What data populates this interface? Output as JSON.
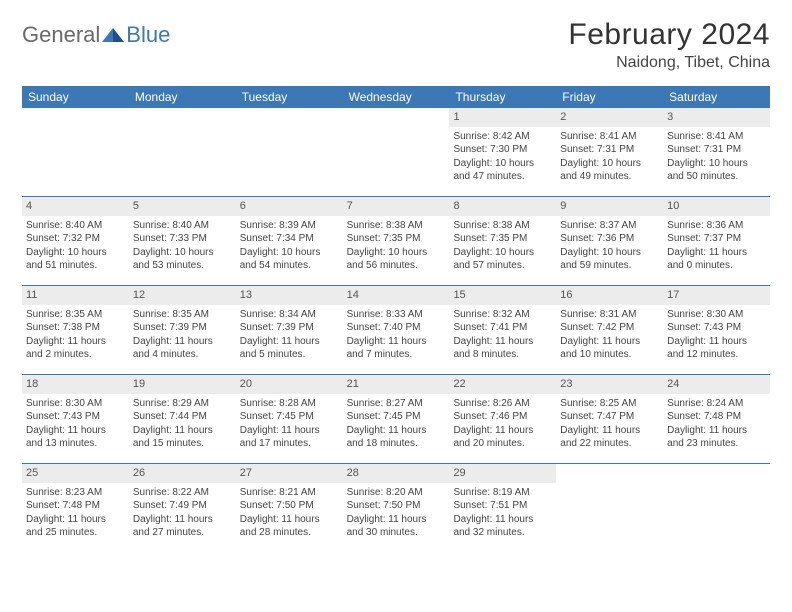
{
  "logo": {
    "word1": "General",
    "word2": "Blue"
  },
  "title": "February 2024",
  "location": "Naidong, Tibet, China",
  "colors": {
    "header_bg": "#3b78b5",
    "header_text": "#ffffff",
    "daynum_bg": "#ececec",
    "border": "#3b78b5",
    "body_text": "#444444"
  },
  "daysOfWeek": [
    "Sunday",
    "Monday",
    "Tuesday",
    "Wednesday",
    "Thursday",
    "Friday",
    "Saturday"
  ],
  "weeks": [
    [
      null,
      null,
      null,
      null,
      {
        "n": "1",
        "sr": "Sunrise: 8:42 AM",
        "ss": "Sunset: 7:30 PM",
        "d1": "Daylight: 10 hours",
        "d2": "and 47 minutes."
      },
      {
        "n": "2",
        "sr": "Sunrise: 8:41 AM",
        "ss": "Sunset: 7:31 PM",
        "d1": "Daylight: 10 hours",
        "d2": "and 49 minutes."
      },
      {
        "n": "3",
        "sr": "Sunrise: 8:41 AM",
        "ss": "Sunset: 7:31 PM",
        "d1": "Daylight: 10 hours",
        "d2": "and 50 minutes."
      }
    ],
    [
      {
        "n": "4",
        "sr": "Sunrise: 8:40 AM",
        "ss": "Sunset: 7:32 PM",
        "d1": "Daylight: 10 hours",
        "d2": "and 51 minutes."
      },
      {
        "n": "5",
        "sr": "Sunrise: 8:40 AM",
        "ss": "Sunset: 7:33 PM",
        "d1": "Daylight: 10 hours",
        "d2": "and 53 minutes."
      },
      {
        "n": "6",
        "sr": "Sunrise: 8:39 AM",
        "ss": "Sunset: 7:34 PM",
        "d1": "Daylight: 10 hours",
        "d2": "and 54 minutes."
      },
      {
        "n": "7",
        "sr": "Sunrise: 8:38 AM",
        "ss": "Sunset: 7:35 PM",
        "d1": "Daylight: 10 hours",
        "d2": "and 56 minutes."
      },
      {
        "n": "8",
        "sr": "Sunrise: 8:38 AM",
        "ss": "Sunset: 7:35 PM",
        "d1": "Daylight: 10 hours",
        "d2": "and 57 minutes."
      },
      {
        "n": "9",
        "sr": "Sunrise: 8:37 AM",
        "ss": "Sunset: 7:36 PM",
        "d1": "Daylight: 10 hours",
        "d2": "and 59 minutes."
      },
      {
        "n": "10",
        "sr": "Sunrise: 8:36 AM",
        "ss": "Sunset: 7:37 PM",
        "d1": "Daylight: 11 hours",
        "d2": "and 0 minutes."
      }
    ],
    [
      {
        "n": "11",
        "sr": "Sunrise: 8:35 AM",
        "ss": "Sunset: 7:38 PM",
        "d1": "Daylight: 11 hours",
        "d2": "and 2 minutes."
      },
      {
        "n": "12",
        "sr": "Sunrise: 8:35 AM",
        "ss": "Sunset: 7:39 PM",
        "d1": "Daylight: 11 hours",
        "d2": "and 4 minutes."
      },
      {
        "n": "13",
        "sr": "Sunrise: 8:34 AM",
        "ss": "Sunset: 7:39 PM",
        "d1": "Daylight: 11 hours",
        "d2": "and 5 minutes."
      },
      {
        "n": "14",
        "sr": "Sunrise: 8:33 AM",
        "ss": "Sunset: 7:40 PM",
        "d1": "Daylight: 11 hours",
        "d2": "and 7 minutes."
      },
      {
        "n": "15",
        "sr": "Sunrise: 8:32 AM",
        "ss": "Sunset: 7:41 PM",
        "d1": "Daylight: 11 hours",
        "d2": "and 8 minutes."
      },
      {
        "n": "16",
        "sr": "Sunrise: 8:31 AM",
        "ss": "Sunset: 7:42 PM",
        "d1": "Daylight: 11 hours",
        "d2": "and 10 minutes."
      },
      {
        "n": "17",
        "sr": "Sunrise: 8:30 AM",
        "ss": "Sunset: 7:43 PM",
        "d1": "Daylight: 11 hours",
        "d2": "and 12 minutes."
      }
    ],
    [
      {
        "n": "18",
        "sr": "Sunrise: 8:30 AM",
        "ss": "Sunset: 7:43 PM",
        "d1": "Daylight: 11 hours",
        "d2": "and 13 minutes."
      },
      {
        "n": "19",
        "sr": "Sunrise: 8:29 AM",
        "ss": "Sunset: 7:44 PM",
        "d1": "Daylight: 11 hours",
        "d2": "and 15 minutes."
      },
      {
        "n": "20",
        "sr": "Sunrise: 8:28 AM",
        "ss": "Sunset: 7:45 PM",
        "d1": "Daylight: 11 hours",
        "d2": "and 17 minutes."
      },
      {
        "n": "21",
        "sr": "Sunrise: 8:27 AM",
        "ss": "Sunset: 7:45 PM",
        "d1": "Daylight: 11 hours",
        "d2": "and 18 minutes."
      },
      {
        "n": "22",
        "sr": "Sunrise: 8:26 AM",
        "ss": "Sunset: 7:46 PM",
        "d1": "Daylight: 11 hours",
        "d2": "and 20 minutes."
      },
      {
        "n": "23",
        "sr": "Sunrise: 8:25 AM",
        "ss": "Sunset: 7:47 PM",
        "d1": "Daylight: 11 hours",
        "d2": "and 22 minutes."
      },
      {
        "n": "24",
        "sr": "Sunrise: 8:24 AM",
        "ss": "Sunset: 7:48 PM",
        "d1": "Daylight: 11 hours",
        "d2": "and 23 minutes."
      }
    ],
    [
      {
        "n": "25",
        "sr": "Sunrise: 8:23 AM",
        "ss": "Sunset: 7:48 PM",
        "d1": "Daylight: 11 hours",
        "d2": "and 25 minutes."
      },
      {
        "n": "26",
        "sr": "Sunrise: 8:22 AM",
        "ss": "Sunset: 7:49 PM",
        "d1": "Daylight: 11 hours",
        "d2": "and 27 minutes."
      },
      {
        "n": "27",
        "sr": "Sunrise: 8:21 AM",
        "ss": "Sunset: 7:50 PM",
        "d1": "Daylight: 11 hours",
        "d2": "and 28 minutes."
      },
      {
        "n": "28",
        "sr": "Sunrise: 8:20 AM",
        "ss": "Sunset: 7:50 PM",
        "d1": "Daylight: 11 hours",
        "d2": "and 30 minutes."
      },
      {
        "n": "29",
        "sr": "Sunrise: 8:19 AM",
        "ss": "Sunset: 7:51 PM",
        "d1": "Daylight: 11 hours",
        "d2": "and 32 minutes."
      },
      null,
      null
    ]
  ]
}
